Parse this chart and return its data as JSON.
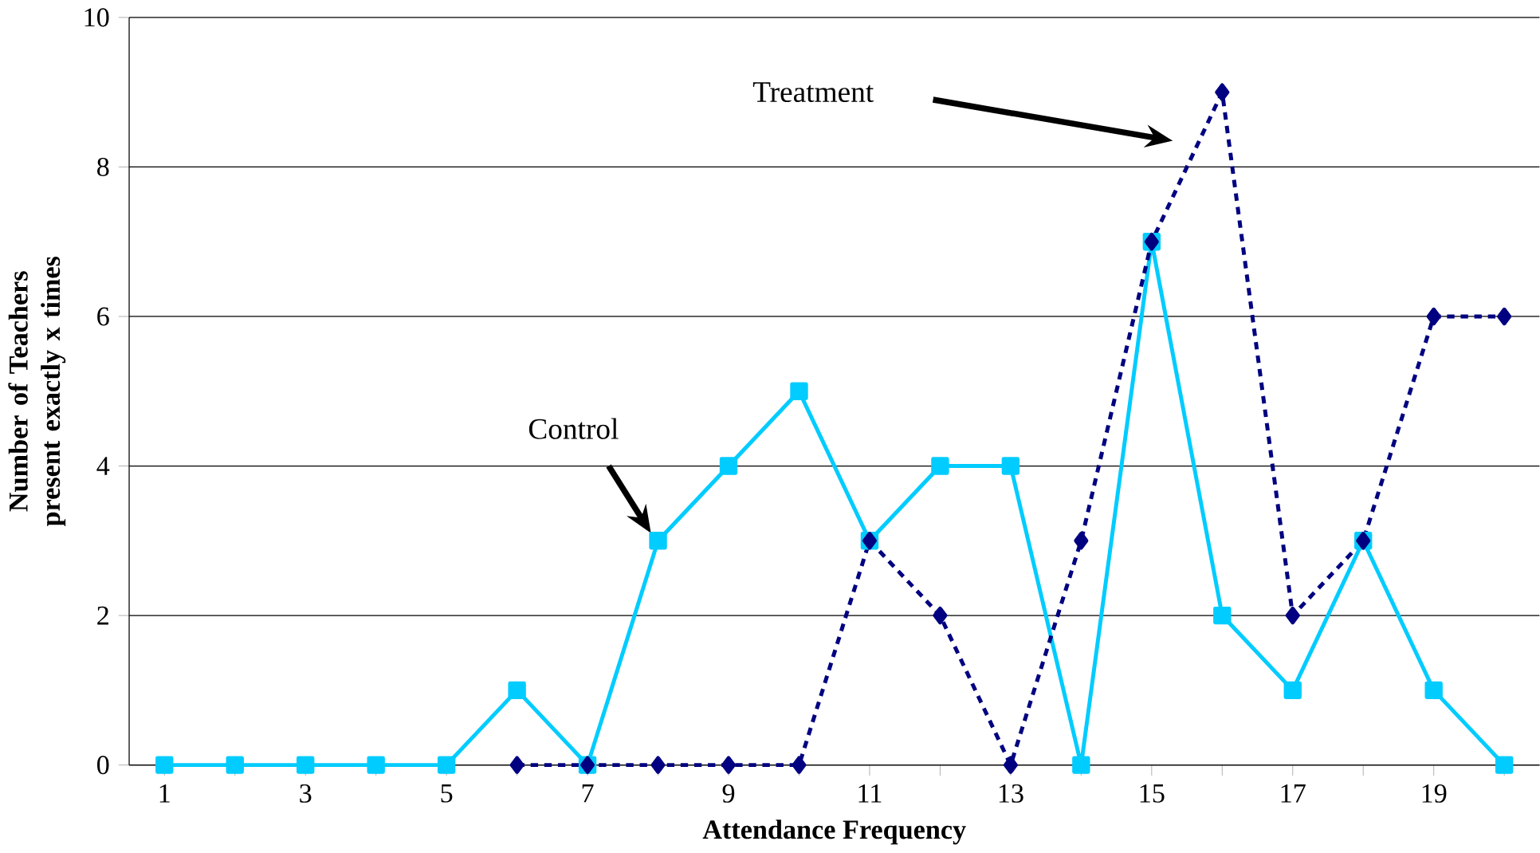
{
  "chart_data": {
    "type": "line",
    "xlabel": "Attendance Frequency",
    "ylabel": "Number of Teachers present exactly x times",
    "categories": [
      "1",
      null,
      "3",
      null,
      "5",
      null,
      "7",
      null,
      "9",
      null,
      "11",
      null,
      "13",
      null,
      "15",
      null,
      "17",
      null,
      "19",
      null
    ],
    "series": [
      {
        "color": "#00ccff",
        "marker": "square",
        "line_style": "solid",
        "values": [
          0,
          0,
          0,
          0,
          0,
          1,
          0,
          3,
          4,
          5,
          3,
          4,
          4,
          0,
          7,
          2,
          1,
          3,
          1,
          0
        ]
      },
      {
        "color": "#000080",
        "marker": "diamond",
        "line_style": "dotted",
        "values": [
          null,
          null,
          null,
          null,
          null,
          0,
          0,
          0,
          0,
          0,
          3,
          2,
          0,
          3,
          7,
          9,
          2,
          3,
          6,
          6
        ]
      }
    ],
    "ylim": [
      0,
      10
    ],
    "yticks": [
      0,
      2,
      4,
      6,
      8,
      10
    ],
    "grid": "y",
    "annotations": [
      "Treatment",
      "Control"
    ]
  }
}
